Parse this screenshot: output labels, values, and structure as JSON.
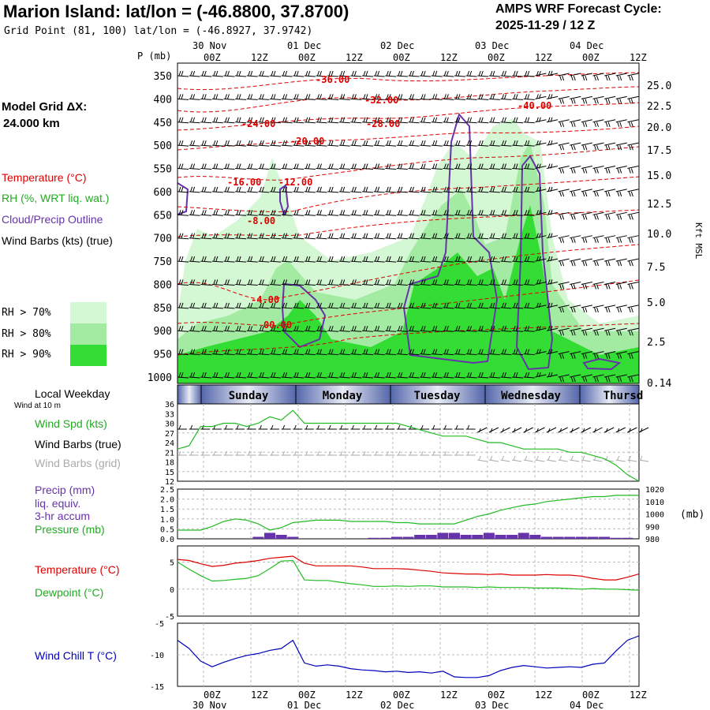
{
  "header": {
    "title": "Marion Island:  lat/lon = (-46.8800, 37.8700)",
    "subtitle": "Grid Point (81, 100) lat/lon = (-46.8927, 37.9742)",
    "cycle_line1": "AMPS WRF Forecast Cycle:",
    "cycle_line2": "2025-11-29 / 12  Z"
  },
  "legend": {
    "model_grid_label": "Model Grid ΔX:",
    "model_grid_value": "24.000 km",
    "temperature": "Temperature (°C)",
    "rh": "RH (%, WRT liq. wat.)",
    "cloud": "Cloud/Precip Outline",
    "wind": "Wind Barbs (kts) (true)",
    "rh70": "RH > 70%",
    "rh80": "RH > 80%",
    "rh90": "RH > 90%"
  },
  "colors": {
    "temperature": "#dd0000",
    "cloud": "#6633aa",
    "rh70": "#d4f7d4",
    "rh80": "#a3eba3",
    "rh90": "#33dd33",
    "green_line": "#22bb22",
    "blue_line": "#0000bb",
    "precip": "#6633aa",
    "weekday_band": "#5566aa"
  },
  "time_axis": {
    "top_dates": [
      "30 Nov",
      "01 Dec",
      "02 Dec",
      "03 Dec",
      "04 Dec"
    ],
    "hour_labels": [
      "00Z",
      "12Z",
      "00Z",
      "12Z",
      "00Z",
      "12Z",
      "00Z",
      "12Z",
      "00Z",
      "12Z"
    ],
    "bottom_dates": [
      "30 Nov",
      "01 Dec",
      "02 Dec",
      "03 Dec",
      "04 Dec"
    ]
  },
  "section_panel": {
    "p_axis_title": "P (mb)",
    "pressure_levels": [
      "350",
      "400",
      "450",
      "500",
      "550",
      "600",
      "650",
      "700",
      "750",
      "800",
      "850",
      "900",
      "950",
      "1000"
    ],
    "height_labels": [
      "25.0",
      "22.5",
      "20.0",
      "17.5",
      "15.0",
      "12.5",
      "10.0",
      "7.5",
      "5.0",
      "2.5",
      "0.14"
    ],
    "height_axis_title": "Kft MSL",
    "temperature_contour_labels": [
      "-36.00",
      "-32.00",
      "-28.00",
      "-40.00",
      "-24.00",
      "-20.00",
      "-16.00",
      "-12.00",
      "-8.00",
      "-4.00",
      "00.00"
    ]
  },
  "weekday_panel": {
    "title": "Local Weekday",
    "subtitle": "Wind at 10 m",
    "days": [
      "Sunday",
      "Monday",
      "Tuesday",
      "Wednesday",
      "Thursd"
    ]
  },
  "wind_panel": {
    "legend_speed": "Wind Spd (kts)",
    "legend_barbs_true": "Wind Barbs (true)",
    "legend_barbs_grid": "Wind Barbs (grid)",
    "y_ticks": [
      "36",
      "33",
      "30",
      "27",
      "24",
      "21",
      "18",
      "15",
      "12"
    ]
  },
  "precip_panel": {
    "legend_precip1": "Precip (mm)",
    "legend_precip2": "liq. equiv.",
    "legend_precip3": "3-hr accum",
    "legend_pressure": "Pressure (mb)",
    "left_ticks": [
      "2.5",
      "2.0",
      "1.5",
      "1.0",
      "0.5",
      "0.0"
    ],
    "right_ticks": [
      "1020",
      "1010",
      "1000",
      "990",
      "980"
    ],
    "right_unit": "(mb)"
  },
  "temp_panel": {
    "legend_temp": "Temperature (°C)",
    "legend_dew": "Dewpoint (°C)",
    "y_ticks": [
      "5",
      "0",
      "-5"
    ]
  },
  "chill_panel": {
    "legend": "Wind Chill T (°C)",
    "y_ticks": [
      "-5",
      "-10",
      "-15"
    ]
  },
  "chart_data": {
    "type": "line",
    "title": "Marion Island:  lat/lon = (-46.8800, 37.8700)",
    "x_unit": "forecast hour from 2025-11-29 12Z",
    "x": [
      0,
      3,
      6,
      9,
      12,
      15,
      18,
      21,
      24,
      27,
      30,
      33,
      36,
      39,
      42,
      45,
      48,
      51,
      54,
      57,
      60,
      63,
      66,
      69,
      72,
      75,
      78,
      81,
      84,
      87,
      90,
      93,
      96,
      99,
      102,
      105,
      108,
      111,
      114,
      117,
      120
    ],
    "series": [
      {
        "name": "Wind Spd (kts)",
        "values": [
          22,
          23,
          29,
          29,
          30,
          30,
          29,
          30,
          32,
          31,
          34,
          30,
          30,
          30,
          30,
          30,
          30,
          30,
          30,
          30,
          29,
          28,
          27,
          26,
          26,
          26,
          25,
          24,
          24,
          23,
          22,
          22,
          22,
          22,
          21,
          21,
          20,
          19,
          17,
          14,
          12
        ]
      },
      {
        "name": "Pressure (mb)",
        "values": [
          987,
          987,
          987,
          990,
          994,
          996,
          995,
          992,
          987,
          989,
          993,
          994,
          995,
          995,
          995,
          994,
          994,
          994,
          994,
          993,
          993,
          992,
          992,
          992,
          992,
          995,
          998,
          1000,
          1003,
          1005,
          1007,
          1008,
          1010,
          1011,
          1012,
          1013,
          1014,
          1014,
          1015,
          1015,
          1015
        ]
      },
      {
        "name": "Precip (mm)",
        "values": [
          0,
          0,
          0,
          0,
          0,
          0,
          0,
          0.1,
          0.3,
          0.2,
          0.1,
          0,
          0,
          0,
          0,
          0,
          0,
          0.05,
          0.05,
          0.1,
          0.1,
          0.2,
          0.2,
          0.3,
          0.3,
          0.2,
          0.2,
          0.3,
          0.2,
          0.2,
          0.3,
          0.2,
          0.1,
          0.1,
          0.1,
          0.1,
          0.1,
          0.1,
          0.05,
          0.05,
          0
        ]
      },
      {
        "name": "Temperature (°C)",
        "values": [
          5.5,
          5.3,
          4.7,
          4.2,
          4.4,
          4.8,
          5.0,
          5.3,
          5.7,
          5.9,
          6.1,
          4.8,
          4.3,
          4.3,
          4.3,
          4.3,
          4.1,
          3.8,
          3.8,
          3.8,
          3.7,
          3.5,
          3.3,
          3.0,
          2.9,
          2.8,
          2.8,
          2.7,
          2.8,
          2.6,
          2.6,
          2.6,
          2.7,
          2.6,
          2.6,
          2.4,
          2.0,
          1.7,
          1.7,
          2.2,
          2.8
        ]
      },
      {
        "name": "Dewpoint (°C)",
        "values": [
          5.0,
          3.7,
          2.5,
          1.5,
          1.6,
          1.8,
          2.0,
          2.5,
          3.8,
          5.2,
          5.3,
          1.7,
          1.6,
          1.6,
          1.3,
          1.0,
          0.8,
          0.5,
          0.5,
          0.6,
          0.5,
          0.6,
          0.6,
          0.4,
          0.4,
          0.4,
          0.3,
          0.4,
          0.3,
          0.3,
          0.3,
          0.2,
          0.2,
          0.2,
          0.1,
          0.0,
          0.1,
          0.0,
          0.0,
          -0.1,
          -0.2
        ]
      },
      {
        "name": "Wind Chill T (°C)",
        "values": [
          -7.7,
          -9.0,
          -11.0,
          -11.9,
          -11.2,
          -10.6,
          -10.1,
          -9.8,
          -9.3,
          -9.0,
          -7.7,
          -11.3,
          -11.8,
          -11.6,
          -11.8,
          -12.2,
          -12.4,
          -12.5,
          -12.7,
          -12.6,
          -12.8,
          -12.7,
          -12.9,
          -12.6,
          -13.5,
          -13.6,
          -13.6,
          -13.3,
          -12.5,
          -12.0,
          -11.7,
          -11.9,
          -12.1,
          -12.0,
          -11.9,
          -12.0,
          -11.5,
          -11.3,
          -9.4,
          -7.7,
          -7.0
        ]
      }
    ],
    "axes": {
      "section_pressure_range_mb": [
        1000,
        350
      ],
      "wind_ylim": [
        12,
        36
      ],
      "precip_ylim": [
        0,
        2.5
      ],
      "pressure_ylim": [
        980,
        1020
      ],
      "temp_ylim": [
        -5,
        8
      ],
      "chill_ylim": [
        -15,
        -5
      ],
      "x_range_hours": [
        0,
        120
      ]
    },
    "grid": true
  }
}
